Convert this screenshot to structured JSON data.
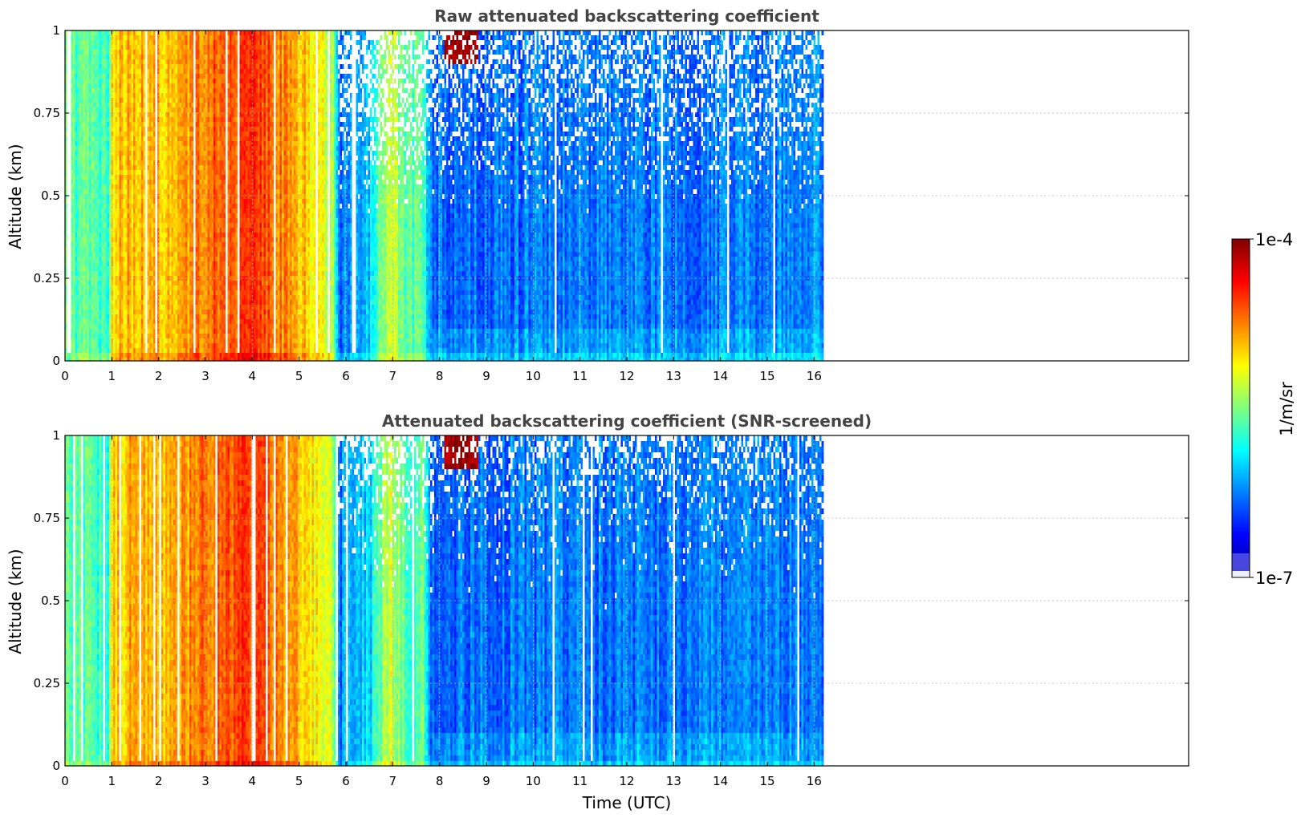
{
  "chart_data": [
    {
      "type": "heatmap",
      "title": "Raw attenuated backscattering coefficient",
      "xlabel": "",
      "ylabel": "Altitude (km)",
      "xlim": [
        0,
        24
      ],
      "ylim": [
        0,
        1
      ],
      "data_extent_x": [
        0,
        16.2
      ],
      "xticks": [
        0,
        1,
        2,
        3,
        4,
        5,
        6,
        7,
        8,
        9,
        10,
        11,
        12,
        13,
        14,
        15,
        16
      ],
      "yticks": [
        0,
        0.25,
        0.5,
        0.75,
        1
      ],
      "ytick_labels": [
        "0",
        "0.25",
        "0.5",
        "0.75",
        "1"
      ],
      "grid": true,
      "screened": false
    },
    {
      "type": "heatmap",
      "title": "Attenuated backscattering coefficient (SNR-screened)",
      "xlabel": "Time (UTC)",
      "ylabel": "Altitude (km)",
      "xlim": [
        0,
        24
      ],
      "ylim": [
        0,
        1
      ],
      "data_extent_x": [
        0,
        16.2
      ],
      "xticks": [
        0,
        1,
        2,
        3,
        4,
        5,
        6,
        7,
        8,
        9,
        10,
        11,
        12,
        13,
        14,
        15,
        16
      ],
      "yticks": [
        0,
        0.25,
        0.5,
        0.75,
        1
      ],
      "ytick_labels": [
        "0",
        "0.25",
        "0.5",
        "0.75",
        "1"
      ],
      "grid": true,
      "screened": true
    }
  ],
  "colorbar": {
    "label": "1/m/sr",
    "max_label": "1e-4",
    "min_label": "1e-7",
    "scale": "log",
    "range": [
      1e-07,
      0.0001
    ],
    "colormap": "jet"
  },
  "profile": {
    "log10_levels": [
      {
        "t": 0.0,
        "v": -5.6
      },
      {
        "t": 0.9,
        "v": -5.7
      },
      {
        "t": 1.0,
        "v": -5.0
      },
      {
        "t": 1.5,
        "v": -4.9
      },
      {
        "t": 2.2,
        "v": -4.95
      },
      {
        "t": 3.0,
        "v": -4.7
      },
      {
        "t": 3.8,
        "v": -4.55
      },
      {
        "t": 4.6,
        "v": -4.75
      },
      {
        "t": 5.2,
        "v": -5.05
      },
      {
        "t": 5.7,
        "v": -5.3
      },
      {
        "t": 5.85,
        "v": -6.25
      },
      {
        "t": 6.5,
        "v": -6.0
      },
      {
        "t": 6.9,
        "v": -5.25
      },
      {
        "t": 7.3,
        "v": -5.7
      },
      {
        "t": 7.6,
        "v": -5.5
      },
      {
        "t": 7.8,
        "v": -6.3
      },
      {
        "t": 16.2,
        "v": -6.25
      }
    ],
    "aerosol_patch": {
      "t0": 8.1,
      "t1": 8.8,
      "alt0": 0.9,
      "log10_value": -4.1
    }
  }
}
